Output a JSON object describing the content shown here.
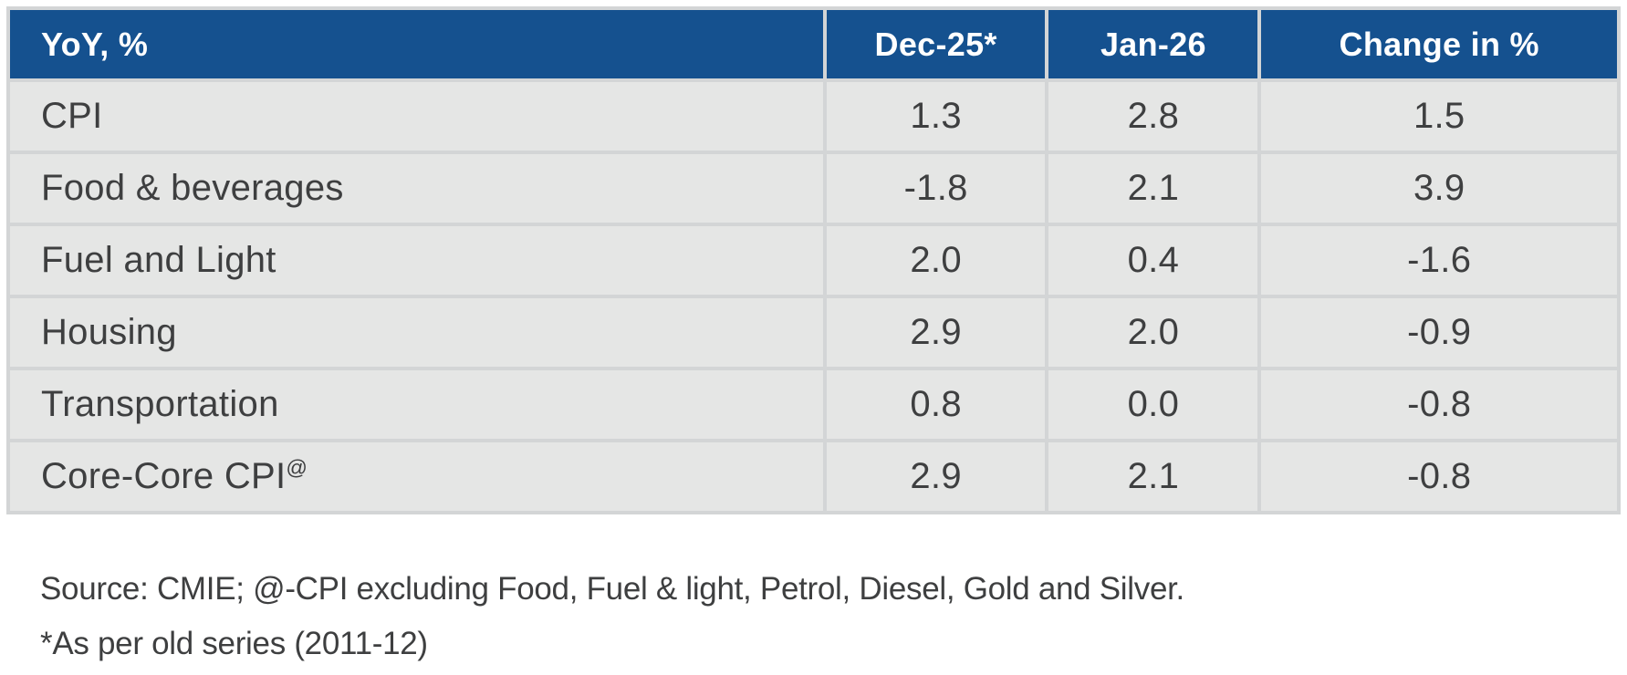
{
  "table": {
    "columns": [
      "YoY, %",
      "Dec-25*",
      "Jan-26",
      "Change in %"
    ],
    "rows": [
      {
        "label": "CPI",
        "sup": "",
        "values": [
          "1.3",
          "2.8",
          "1.5"
        ]
      },
      {
        "label": "Food & beverages",
        "sup": "",
        "values": [
          "-1.8",
          "2.1",
          "3.9"
        ]
      },
      {
        "label": "Fuel and Light",
        "sup": "",
        "values": [
          "2.0",
          "0.4",
          "-1.6"
        ]
      },
      {
        "label": "Housing",
        "sup": "",
        "values": [
          "2.9",
          "2.0",
          "-0.9"
        ]
      },
      {
        "label": "Transportation",
        "sup": "",
        "values": [
          "0.8",
          "0.0",
          "-0.8"
        ]
      },
      {
        "label": "Core-Core CPI",
        "sup": "@",
        "values": [
          "2.9",
          "2.1",
          "-0.8"
        ]
      }
    ]
  },
  "footnotes": {
    "line1": "Source: CMIE; @-CPI excluding Food, Fuel & light, Petrol, Diesel, Gold and Silver.",
    "line2": "*As per old series (2011-12)"
  },
  "colors": {
    "header_bg": "#15518f",
    "header_text": "#ffffff",
    "row_bg": "#e5e6e5",
    "grid": "#d3d5d6",
    "outer_border": "#c9cccd",
    "text": "#3e3f40",
    "page_bg": "#ffffff"
  },
  "chart_data": {
    "type": "table",
    "title": "YoY, %",
    "columns": [
      "YoY, %",
      "Dec-25*",
      "Jan-26",
      "Change in %"
    ],
    "rows": [
      [
        "CPI",
        1.3,
        2.8,
        1.5
      ],
      [
        "Food & beverages",
        -1.8,
        2.1,
        3.9
      ],
      [
        "Fuel and Light",
        2.0,
        0.4,
        -1.6
      ],
      [
        "Housing",
        2.9,
        2.0,
        -0.9
      ],
      [
        "Transportation",
        0.8,
        0.0,
        -0.8
      ],
      [
        "Core-Core CPI@",
        2.9,
        2.1,
        -0.8
      ]
    ],
    "notes": [
      "Source: CMIE; @-CPI excluding Food, Fuel & light, Petrol, Diesel, Gold and Silver.",
      "*As per old series (2011-12)"
    ]
  }
}
